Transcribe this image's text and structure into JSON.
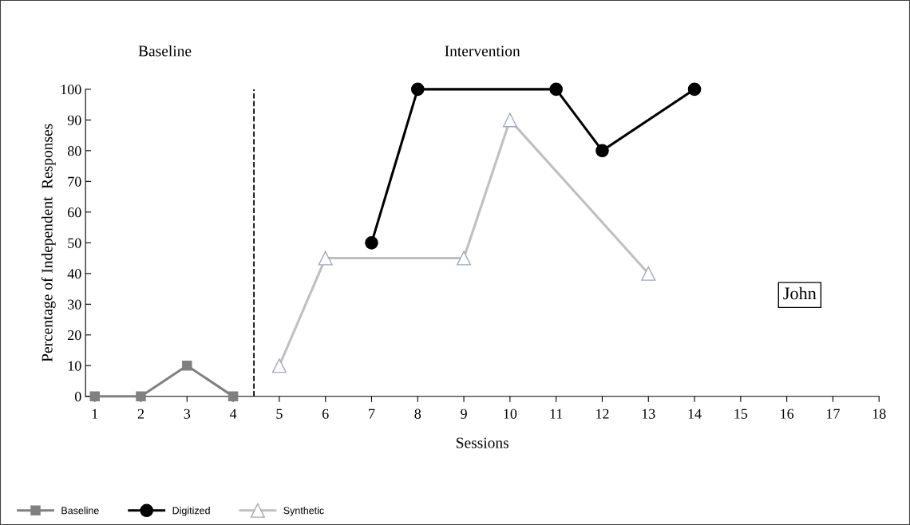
{
  "chart_data": {
    "type": "line",
    "xlabel": "Sessions",
    "ylabel": "Percentage of Independent  Responses",
    "xlim": [
      0.8,
      18
    ],
    "xticks": [
      1,
      2,
      3,
      4,
      5,
      6,
      7,
      8,
      9,
      10,
      11,
      12,
      13,
      14,
      15,
      16,
      17,
      18
    ],
    "ylim": [
      0,
      100
    ],
    "yticks": [
      0,
      10,
      20,
      30,
      40,
      50,
      60,
      70,
      80,
      90,
      100
    ],
    "series": [
      {
        "name": "Baseline",
        "color": "#808080",
        "marker": "square",
        "x": [
          1,
          2,
          3,
          4
        ],
        "values": [
          0,
          0,
          10,
          0
        ]
      },
      {
        "name": "Digitized",
        "color": "#000000",
        "marker": "circle",
        "x": [
          7,
          8,
          11,
          12,
          14
        ],
        "values": [
          50,
          100,
          100,
          80,
          100
        ]
      },
      {
        "name": "Synthetic",
        "color": "#bfbfbf",
        "marker": "triangle",
        "x": [
          5,
          6,
          9,
          10,
          13
        ],
        "values": [
          10,
          45,
          45,
          90,
          40
        ]
      }
    ],
    "ref_lines": [
      {
        "axis": "x",
        "value": 4.45,
        "color": "#000000",
        "line_style": "dashed"
      }
    ],
    "annotations": [
      "Baseline",
      "Intervention",
      "John"
    ],
    "grid": false,
    "legend": "bottom left"
  }
}
